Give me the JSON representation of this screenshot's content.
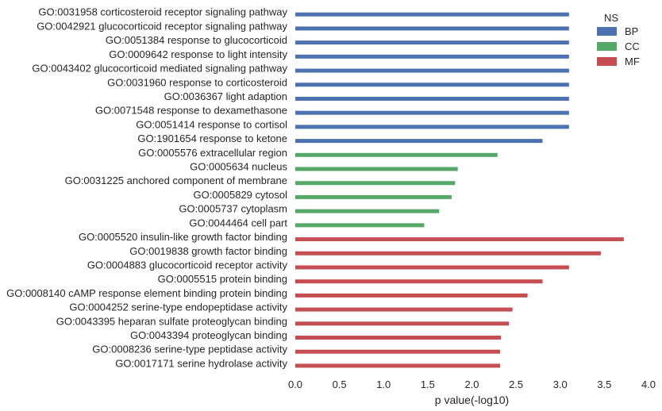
{
  "chart_data": {
    "type": "bar",
    "orientation": "horizontal",
    "xlabel": "p value(-log10)",
    "xlim": [
      0,
      4.0
    ],
    "xticks": [
      "0.0",
      "0.5",
      "1.0",
      "1.5",
      "2.0",
      "2.5",
      "3.0",
      "3.5",
      "4.0"
    ],
    "grid": false,
    "legend": {
      "title": "NS",
      "placement": "top-right",
      "entries": [
        {
          "name": "BP",
          "color": "#4c72b0"
        },
        {
          "name": "CC",
          "color": "#55a868"
        },
        {
          "name": "MF",
          "color": "#c44e52"
        }
      ]
    },
    "bars": [
      {
        "label": "GO:0031958 corticosteroid receptor signaling pathway",
        "value": 3.1,
        "ns": "BP"
      },
      {
        "label": "GO:0042921 glucocorticoid receptor signaling pathway",
        "value": 3.1,
        "ns": "BP"
      },
      {
        "label": "GO:0051384 response to glucocorticoid",
        "value": 3.1,
        "ns": "BP"
      },
      {
        "label": "GO:0009642 response to light intensity",
        "value": 3.1,
        "ns": "BP"
      },
      {
        "label": "GO:0043402 glucocorticoid mediated signaling pathway",
        "value": 3.1,
        "ns": "BP"
      },
      {
        "label": "GO:0031960 response to corticosteroid",
        "value": 3.1,
        "ns": "BP"
      },
      {
        "label": "GO:0036367 light adaption",
        "value": 3.1,
        "ns": "BP"
      },
      {
        "label": "GO:0071548 response to dexamethasone",
        "value": 3.1,
        "ns": "BP"
      },
      {
        "label": "GO:0051414 response to cortisol",
        "value": 3.1,
        "ns": "BP"
      },
      {
        "label": "GO:1901654 response to ketone",
        "value": 2.8,
        "ns": "BP"
      },
      {
        "label": "GO:0005576 extracellular region",
        "value": 2.29,
        "ns": "CC"
      },
      {
        "label": "GO:0005634 nucleus",
        "value": 1.84,
        "ns": "CC"
      },
      {
        "label": "GO:0031225 anchored component of membrane",
        "value": 1.81,
        "ns": "CC"
      },
      {
        "label": "GO:0005829 cytosol",
        "value": 1.77,
        "ns": "CC"
      },
      {
        "label": "GO:0005737 cytoplasm",
        "value": 1.63,
        "ns": "CC"
      },
      {
        "label": "GO:0044464 cell part",
        "value": 1.46,
        "ns": "CC"
      },
      {
        "label": "GO:0005520 insulin-like growth factor binding",
        "value": 3.72,
        "ns": "MF"
      },
      {
        "label": "GO:0019838 growth factor binding",
        "value": 3.46,
        "ns": "MF"
      },
      {
        "label": "GO:0004883 glucocorticoid receptor activity",
        "value": 3.1,
        "ns": "MF"
      },
      {
        "label": "GO:0005515 protein binding",
        "value": 2.8,
        "ns": "MF"
      },
      {
        "label": "GO:0008140 cAMP response element binding protein binding",
        "value": 2.63,
        "ns": "MF"
      },
      {
        "label": "GO:0004252 serine-type endopeptidase activity",
        "value": 2.46,
        "ns": "MF"
      },
      {
        "label": "GO:0043395 heparan sulfate proteoglycan binding",
        "value": 2.42,
        "ns": "MF"
      },
      {
        "label": "GO:0043394 proteoglycan binding",
        "value": 2.33,
        "ns": "MF"
      },
      {
        "label": "GO:0008236 serine-type peptidase activity",
        "value": 2.32,
        "ns": "MF"
      },
      {
        "label": "GO:0017171 serine hydrolase activity",
        "value": 2.32,
        "ns": "MF"
      }
    ]
  }
}
